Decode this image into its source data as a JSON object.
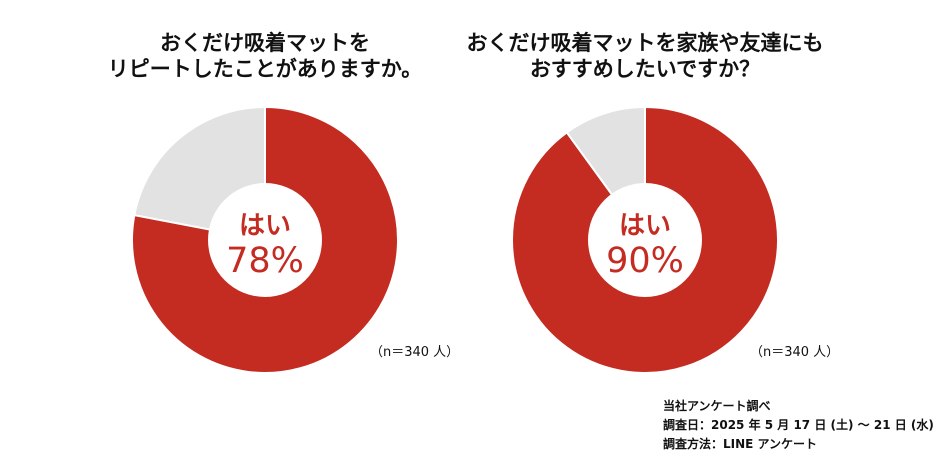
{
  "chart_data": [
    {
      "type": "pie",
      "title_lines": [
        "おくだけ吸着マットを",
        "リピートしたことがありますか。"
      ],
      "slices": [
        {
          "label": "はい",
          "value": 78
        },
        {
          "label": "",
          "value": 22
        }
      ],
      "center_label": "はい",
      "center_value": "78%",
      "n_label": "（n＝340 人）",
      "colors": [
        "#c42c22",
        "#e2e2e2"
      ]
    },
    {
      "type": "pie",
      "title_lines": [
        "おくだけ吸着マットを家族や友達にも",
        "おすすめしたいですか？"
      ],
      "slices": [
        {
          "label": "はい",
          "value": 90
        },
        {
          "label": "",
          "value": 10
        }
      ],
      "center_label": "はい",
      "center_value": "90%",
      "n_label": "（n＝340 人）",
      "colors": [
        "#c42c22",
        "#e2e2e2"
      ]
    }
  ],
  "source": {
    "line1": "当社アンケート調べ",
    "line2": "調査日：2025 年 5 月 17 日 (土) 〜 21 日 (水)",
    "line3": "調査方法：LINE アンケート"
  }
}
